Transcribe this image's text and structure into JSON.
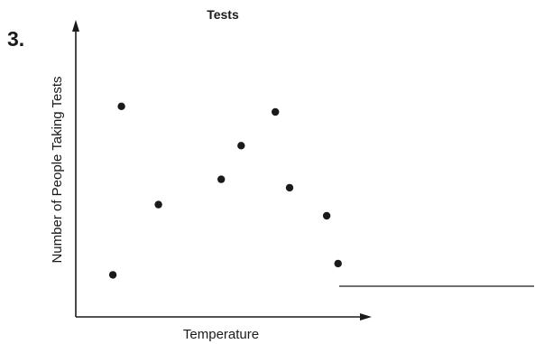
{
  "problem_number": "3.",
  "chart_data": {
    "type": "scatter",
    "title": "Tests",
    "xlabel": "Temperature",
    "ylabel": "Number of People Taking Tests",
    "xlim": [
      0,
      10
    ],
    "ylim": [
      0,
      10
    ],
    "grid": false,
    "ticks": false,
    "points": [
      {
        "x": 1.6,
        "y": 7.5
      },
      {
        "x": 1.3,
        "y": 1.5
      },
      {
        "x": 2.9,
        "y": 4.0
      },
      {
        "x": 5.1,
        "y": 4.9
      },
      {
        "x": 5.8,
        "y": 6.1
      },
      {
        "x": 7.0,
        "y": 7.3
      },
      {
        "x": 7.5,
        "y": 4.6
      },
      {
        "x": 8.8,
        "y": 3.6
      },
      {
        "x": 9.2,
        "y": 1.9
      }
    ]
  },
  "answer_line": ""
}
